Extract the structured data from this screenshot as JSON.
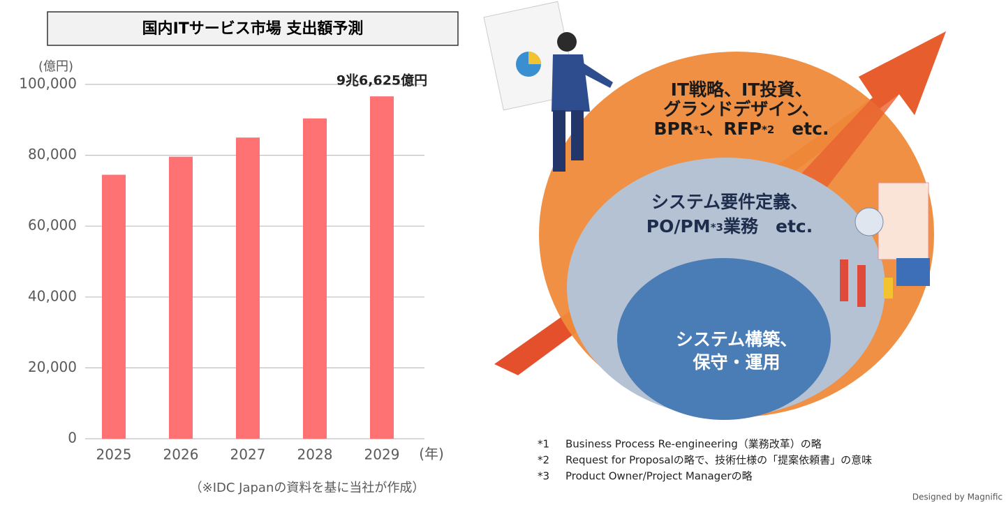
{
  "chart_data": {
    "type": "bar",
    "title": "国内ITサービス市場 支出額予測",
    "y_unit": "(億円)",
    "x_unit": "(年)",
    "source": "（※IDC Japanの資料を基に当社が作成）",
    "categories": [
      "2025",
      "2026",
      "2027",
      "2028",
      "2029"
    ],
    "values": [
      74500,
      79600,
      85000,
      90400,
      96625
    ],
    "value_labels": [
      null,
      null,
      null,
      null,
      "9兆6,625億円"
    ],
    "color": "#ff7274",
    "ylim": [
      0,
      100000
    ],
    "yticks": [
      0,
      {
        "value": 20000,
        "label": "20,000"
      },
      {
        "value": 40000,
        "label": "40,000"
      },
      {
        "value": 60000,
        "label": "60,000"
      },
      {
        "value": 80000,
        "label": "80,000"
      },
      {
        "value": 100000,
        "label": "100,000"
      }
    ],
    "grid": true
  },
  "diagram": {
    "outer_lines": [
      [
        "IT戦略、IT投資、"
      ],
      [
        "グランドデザイン、"
      ],
      [
        "BPR",
        "*1",
        "、RFP",
        "*2",
        "　etc."
      ]
    ],
    "middle_lines": [
      [
        "システム要件定義、"
      ],
      [
        "PO/PM",
        "*3",
        "業務　etc."
      ]
    ],
    "inner_lines": [
      [
        "システム構築、"
      ],
      [
        "保守・運用"
      ]
    ],
    "footnotes": [
      [
        "*1",
        "Business Process Re-engineering（業務改革）の略"
      ],
      [
        "*2",
        "Request for Proposalの略で、技術仕様の「提案依頼書」の意味"
      ],
      [
        "*3",
        "Product Owner/Project Managerの略"
      ]
    ],
    "credit": "Designed by Magnific"
  }
}
